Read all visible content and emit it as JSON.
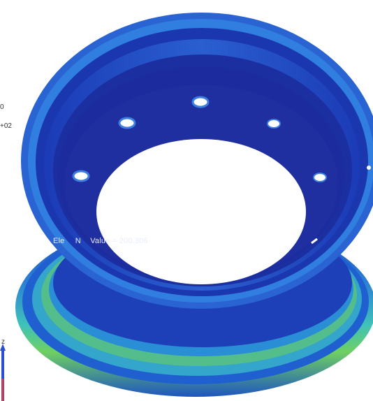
{
  "legend": {
    "partial_values": [
      "0",
      "+02"
    ]
  },
  "probe": {
    "text_prefix": "Ele",
    "text_mid": "N",
    "value_label": "Value =",
    "value": "200.306"
  },
  "triad": {
    "axis_label": "z"
  },
  "colors": {
    "background": "#ffffff",
    "contour_low": "#1a2a9c",
    "contour_low_mid": "#1f47c8",
    "contour_mid": "#2a86d8",
    "contour_high": "#39c1c9",
    "contour_peak": "#7fd64a",
    "hole": "#ffffff"
  },
  "model": {
    "bolt_hole_count": 8
  }
}
